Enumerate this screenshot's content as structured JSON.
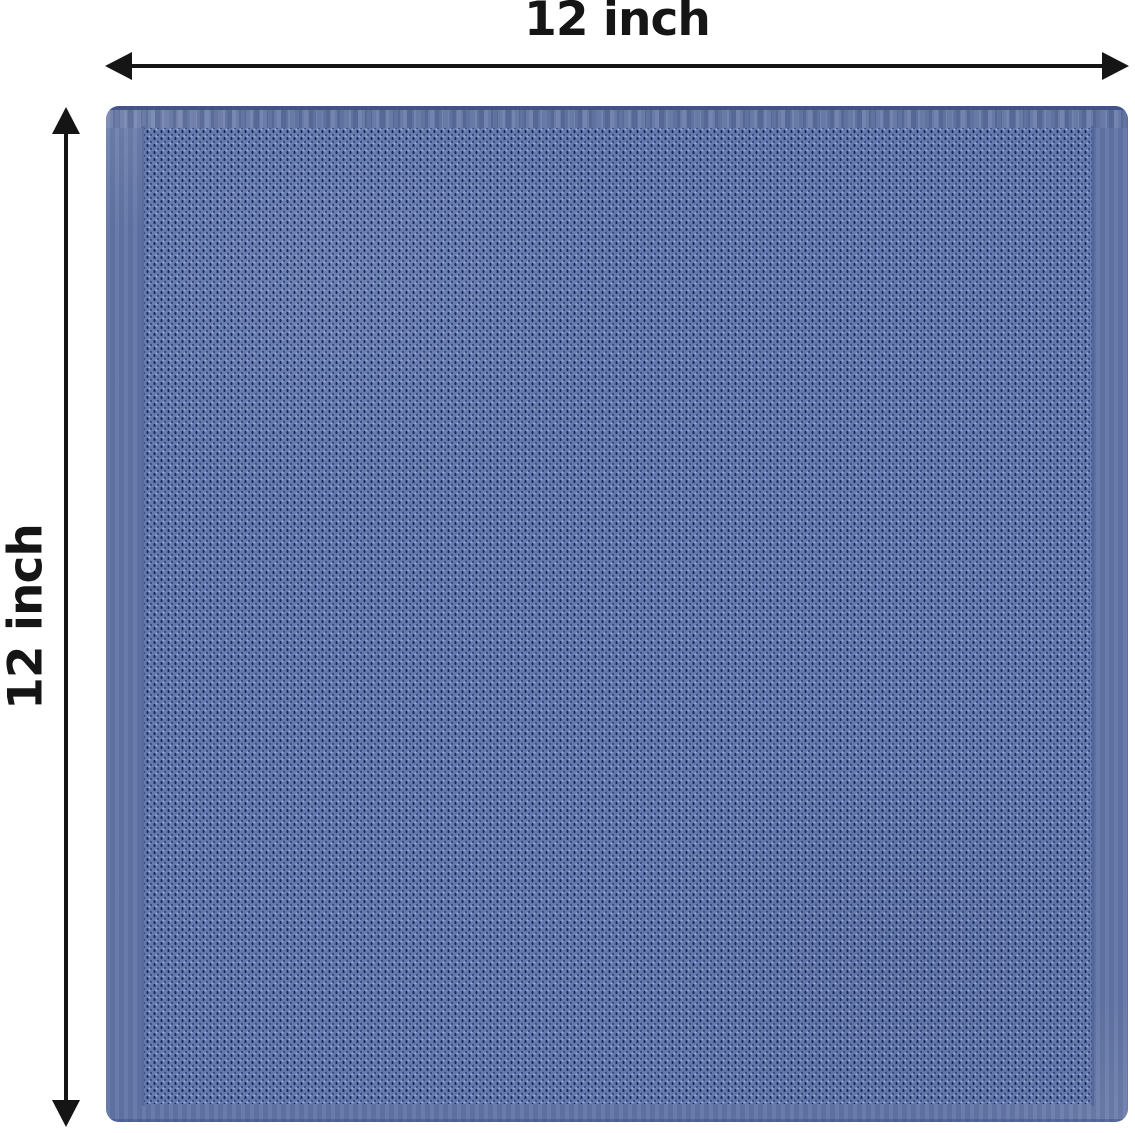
{
  "title": "Fabric swatch dimension diagram",
  "dimensions": {
    "width_label": "12 inch",
    "height_label": "12 inch"
  },
  "product": {
    "type": "waffle-weave textured cloth swatch",
    "color_name": "blue"
  },
  "colors": {
    "ink": "#151515",
    "canvas-bg": "#ffffff",
    "selvage": "#6174a6",
    "weave-base": "#6579ac",
    "weave-dark": "#243a74",
    "weave-deep": "#16295e",
    "weave-highlight": "#93a3cc",
    "edge-line": "#3b4c84",
    "seam": "#4a5b92"
  }
}
